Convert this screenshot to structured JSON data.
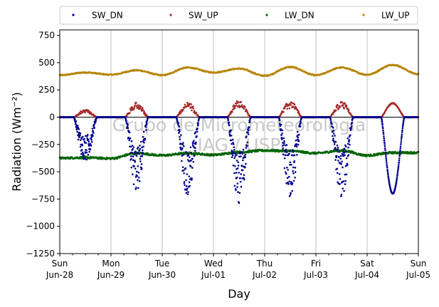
{
  "chart_data": {
    "type": "scatter",
    "xlabel": "Day",
    "ylabel": "Radiation (Wm⁻²)",
    "ylim": [
      -1250,
      800
    ],
    "xlim": [
      "2020-06-28",
      "2020-07-05"
    ],
    "yticks": [
      750,
      500,
      250,
      0,
      -250,
      -500,
      -750,
      -1000,
      -1250
    ],
    "ytick_labels": [
      "750",
      "500",
      "250",
      "0",
      "−250",
      "−500",
      "−750",
      "−1000",
      "−1250"
    ],
    "xticks": [
      {
        "date": "2020-06-28",
        "day": "Sun",
        "date_label": "Jun-28"
      },
      {
        "date": "2020-06-29",
        "day": "Mon",
        "date_label": "Jun-29"
      },
      {
        "date": "2020-06-30",
        "day": "Tue",
        "date_label": "Jun-30"
      },
      {
        "date": "2020-07-01",
        "day": "Wed",
        "date_label": "Jul-01"
      },
      {
        "date": "2020-07-02",
        "day": "Thu",
        "date_label": "Jul-02"
      },
      {
        "date": "2020-07-03",
        "day": "Fri",
        "date_label": "Jul-03"
      },
      {
        "date": "2020-07-04",
        "day": "Sat",
        "date_label": "Jul-04"
      },
      {
        "date": "2020-07-05",
        "day": "Sun",
        "date_label": "Jul-05"
      }
    ],
    "grid": "vertical",
    "legend_placement": "top, outside",
    "watermark": [
      "Grupo de Micrometeorologia",
      "IAG / USP"
    ],
    "series": [
      {
        "name": "SW_DN",
        "color": "#00008b",
        "daily_min": [
          -420,
          -690,
          -730,
          -820,
          -740,
          -740,
          -700
        ],
        "note_values": "daily minimum (most negative) value of each day's dip, 7 days"
      },
      {
        "name": "SW_UP",
        "color": "#a52a2a",
        "daily_max": [
          70,
          140,
          140,
          160,
          150,
          150,
          130
        ]
      },
      {
        "name": "LW_DN",
        "color": "#006400",
        "values": [
          [
            "2020-06-28T00:00",
            -375
          ],
          [
            "2020-06-28T12:00",
            -370
          ],
          [
            "2020-06-29T00:00",
            -378
          ],
          [
            "2020-06-29T12:00",
            -330
          ],
          [
            "2020-06-30T00:00",
            -350
          ],
          [
            "2020-06-30T12:00",
            -330
          ],
          [
            "2020-07-01T00:00",
            -345
          ],
          [
            "2020-07-01T12:00",
            -320
          ],
          [
            "2020-07-02T00:00",
            -305
          ],
          [
            "2020-07-02T12:00",
            -310
          ],
          [
            "2020-07-03T00:00",
            -330
          ],
          [
            "2020-07-03T12:00",
            -305
          ],
          [
            "2020-07-04T00:00",
            -350
          ],
          [
            "2020-07-04T12:00",
            -325
          ],
          [
            "2020-07-05T00:00",
            -325
          ]
        ]
      },
      {
        "name": "LW_UP",
        "color": "#b8860b",
        "values": [
          [
            "2020-06-28T00:00",
            385
          ],
          [
            "2020-06-28T12:00",
            410
          ],
          [
            "2020-06-29T00:00",
            390
          ],
          [
            "2020-06-29T12:00",
            430
          ],
          [
            "2020-06-30T00:00",
            385
          ],
          [
            "2020-06-30T12:00",
            455
          ],
          [
            "2020-07-01T00:00",
            410
          ],
          [
            "2020-07-01T12:00",
            445
          ],
          [
            "2020-07-02T00:00",
            380
          ],
          [
            "2020-07-02T12:00",
            460
          ],
          [
            "2020-07-03T00:00",
            385
          ],
          [
            "2020-07-03T12:00",
            455
          ],
          [
            "2020-07-04T00:00",
            390
          ],
          [
            "2020-07-04T12:00",
            480
          ],
          [
            "2020-07-05T00:00",
            395
          ]
        ]
      }
    ]
  }
}
